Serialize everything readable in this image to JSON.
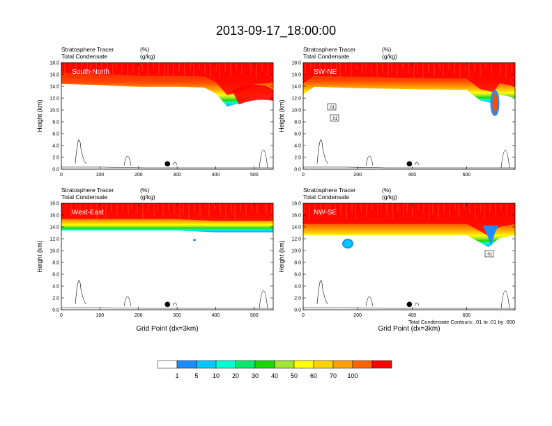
{
  "figure": {
    "title": "2013-09-17_18:00:00",
    "contour_note": "Total Condensate Contours: .01 to .01 by .000"
  },
  "chart_data": [
    {
      "type": "heatmap",
      "panel_label": "South-North",
      "header_left": [
        "Stratosphere Tracer",
        "Total Condensate"
      ],
      "header_units": [
        "(%)",
        "(g/kg)"
      ],
      "ylabel": "Height (km)",
      "xlabel": "",
      "xlim": [
        0,
        549
      ],
      "ylim": [
        0,
        18
      ],
      "xticks": [
        0,
        100,
        200,
        300,
        400,
        500
      ],
      "yticks": [
        "0.0",
        "2.0",
        "4.0",
        "6.0",
        "8.0",
        "10.0",
        "12.0",
        "14.0",
        "16.0",
        "18.0"
      ],
      "marker_x": 275,
      "contour_labels": [],
      "tropopause_km": [
        [
          0,
          14.8
        ],
        [
          100,
          14.6
        ],
        [
          200,
          14.3
        ],
        [
          300,
          14.3
        ],
        [
          370,
          14.2
        ],
        [
          400,
          13.2
        ],
        [
          430,
          11.0
        ],
        [
          460,
          11.5
        ],
        [
          500,
          12.8
        ],
        [
          549,
          13.2
        ]
      ]
    },
    {
      "type": "heatmap",
      "panel_label": "SW-NE",
      "header_left": [
        "Stratosphere Tracer",
        "Total Condensate"
      ],
      "header_units": [
        "(%)",
        "(g/kg)"
      ],
      "ylabel": "Height (km)",
      "xlabel": "",
      "xlim": [
        0,
        778
      ],
      "ylim": [
        0,
        18
      ],
      "xticks": [
        0,
        200,
        400,
        600
      ],
      "yticks": [
        "0.0",
        "2.0",
        "4.0",
        "6.0",
        "8.0",
        "10.0",
        "12.0",
        "14.0",
        "16.0",
        "18.0"
      ],
      "marker_x": 390,
      "contour_labels": [
        ".01",
        ".01"
      ],
      "tropopause_km": [
        [
          0,
          13.0
        ],
        [
          40,
          14.3
        ],
        [
          200,
          14.1
        ],
        [
          400,
          13.9
        ],
        [
          600,
          13.8
        ],
        [
          650,
          12.0
        ],
        [
          700,
          11.5
        ],
        [
          720,
          13.0
        ],
        [
          778,
          12.5
        ]
      ]
    },
    {
      "type": "heatmap",
      "panel_label": "West-East",
      "header_left": [
        "Stratosphere Tracer",
        "Total Condensate"
      ],
      "header_units": [
        "(%)",
        "(g/kg)"
      ],
      "ylabel": "Height (km)",
      "xlabel": "Grid Point (dx=3km)",
      "xlim": [
        0,
        549
      ],
      "ylim": [
        0,
        18
      ],
      "xticks": [
        0,
        100,
        200,
        300,
        400,
        500
      ],
      "yticks": [
        "0.0",
        "2.0",
        "4.0",
        "6.0",
        "8.0",
        "10.0",
        "12.0",
        "14.0",
        "16.0",
        "18.0"
      ],
      "marker_x": 275,
      "contour_labels": [],
      "tropopause_km": [
        [
          0,
          13.8
        ],
        [
          100,
          13.8
        ],
        [
          300,
          13.8
        ],
        [
          400,
          13.5
        ],
        [
          549,
          13.5
        ]
      ]
    },
    {
      "type": "heatmap",
      "panel_label": "NW-SE",
      "header_left": [
        "Stratosphere Tracer",
        "Total Condensate"
      ],
      "header_units": [
        "(%)",
        "(g/kg)"
      ],
      "ylabel": "Height (km)",
      "xlabel": "Grid Point (dx=3km)",
      "xlim": [
        0,
        778
      ],
      "ylim": [
        0,
        18
      ],
      "xticks": [
        0,
        200,
        400,
        600
      ],
      "yticks": [
        "0.0",
        "2.0",
        "4.0",
        "6.0",
        "8.0",
        "10.0",
        "12.0",
        "14.0",
        "16.0",
        "18.0"
      ],
      "marker_x": 390,
      "contour_labels": [
        ".01"
      ],
      "tropopause_km": [
        [
          0,
          13.0
        ],
        [
          300,
          13.0
        ],
        [
          600,
          13.0
        ],
        [
          680,
          11.0
        ],
        [
          720,
          12.5
        ],
        [
          778,
          13.0
        ]
      ]
    }
  ],
  "colorbar": {
    "labels": [
      "1",
      "5",
      "10",
      "20",
      "30",
      "40",
      "50",
      "60",
      "70",
      "100"
    ],
    "colors": [
      "#ffffff",
      "#1e8cff",
      "#00c8ff",
      "#00ffd2",
      "#00eb6e",
      "#1ed700",
      "#a0e632",
      "#ffff00",
      "#ffd200",
      "#ffa000",
      "#ff6400",
      "#ff0000"
    ]
  }
}
